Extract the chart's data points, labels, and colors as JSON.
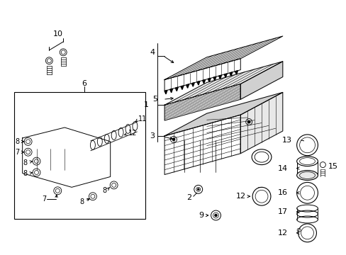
{
  "background_color": "#ffffff",
  "line_color": "#000000",
  "gray_light": "#e8e8e8",
  "gray_mid": "#d0d0d0",
  "gray_dark": "#b8b8b8"
}
